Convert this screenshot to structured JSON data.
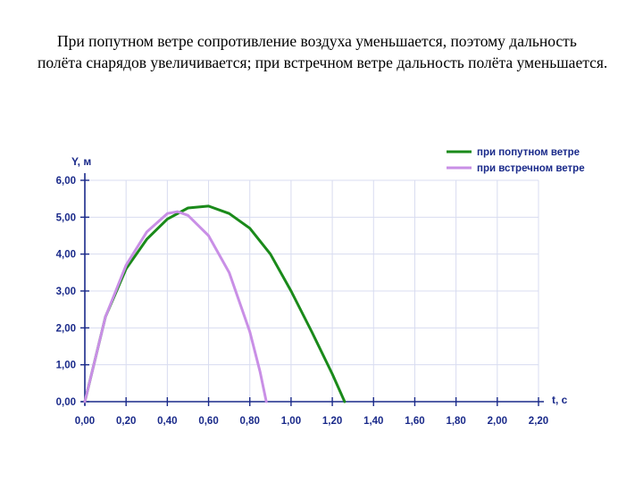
{
  "caption": "При попутном ветре сопротивление воздуха уменьшается, поэтому дальность полёта снарядов увеличивается; при встречном ветре дальность полёта уменьшается.",
  "chart_data": {
    "type": "line",
    "title": "",
    "xlabel": "t, с",
    "ylabel": "Y, м",
    "xlim": [
      0,
      2.2
    ],
    "ylim": [
      0,
      6
    ],
    "xticks": [
      "0,00",
      "0,20",
      "0,40",
      "0,60",
      "0,80",
      "1,00",
      "1,20",
      "1,40",
      "1,60",
      "1,80",
      "2,00",
      "2,20"
    ],
    "yticks": [
      "0,00",
      "1,00",
      "2,00",
      "3,00",
      "4,00",
      "5,00",
      "6,00"
    ],
    "grid": true,
    "legend_position": "top-right",
    "series": [
      {
        "name": "при попутном ветре",
        "color": "#1a8a1a",
        "x": [
          0,
          0.1,
          0.2,
          0.3,
          0.4,
          0.5,
          0.6,
          0.7,
          0.8,
          0.9,
          1.0,
          1.1,
          1.2,
          1.26
        ],
        "y": [
          0,
          2.3,
          3.6,
          4.4,
          4.95,
          5.25,
          5.3,
          5.1,
          4.7,
          4.0,
          3.0,
          1.9,
          0.75,
          0
        ]
      },
      {
        "name": "при встречном ветре",
        "color": "#c98fe6",
        "x": [
          0,
          0.1,
          0.2,
          0.3,
          0.4,
          0.45,
          0.5,
          0.6,
          0.7,
          0.8,
          0.85,
          0.88
        ],
        "y": [
          0,
          2.3,
          3.7,
          4.6,
          5.1,
          5.15,
          5.05,
          4.5,
          3.5,
          1.9,
          0.8,
          0
        ]
      }
    ]
  }
}
